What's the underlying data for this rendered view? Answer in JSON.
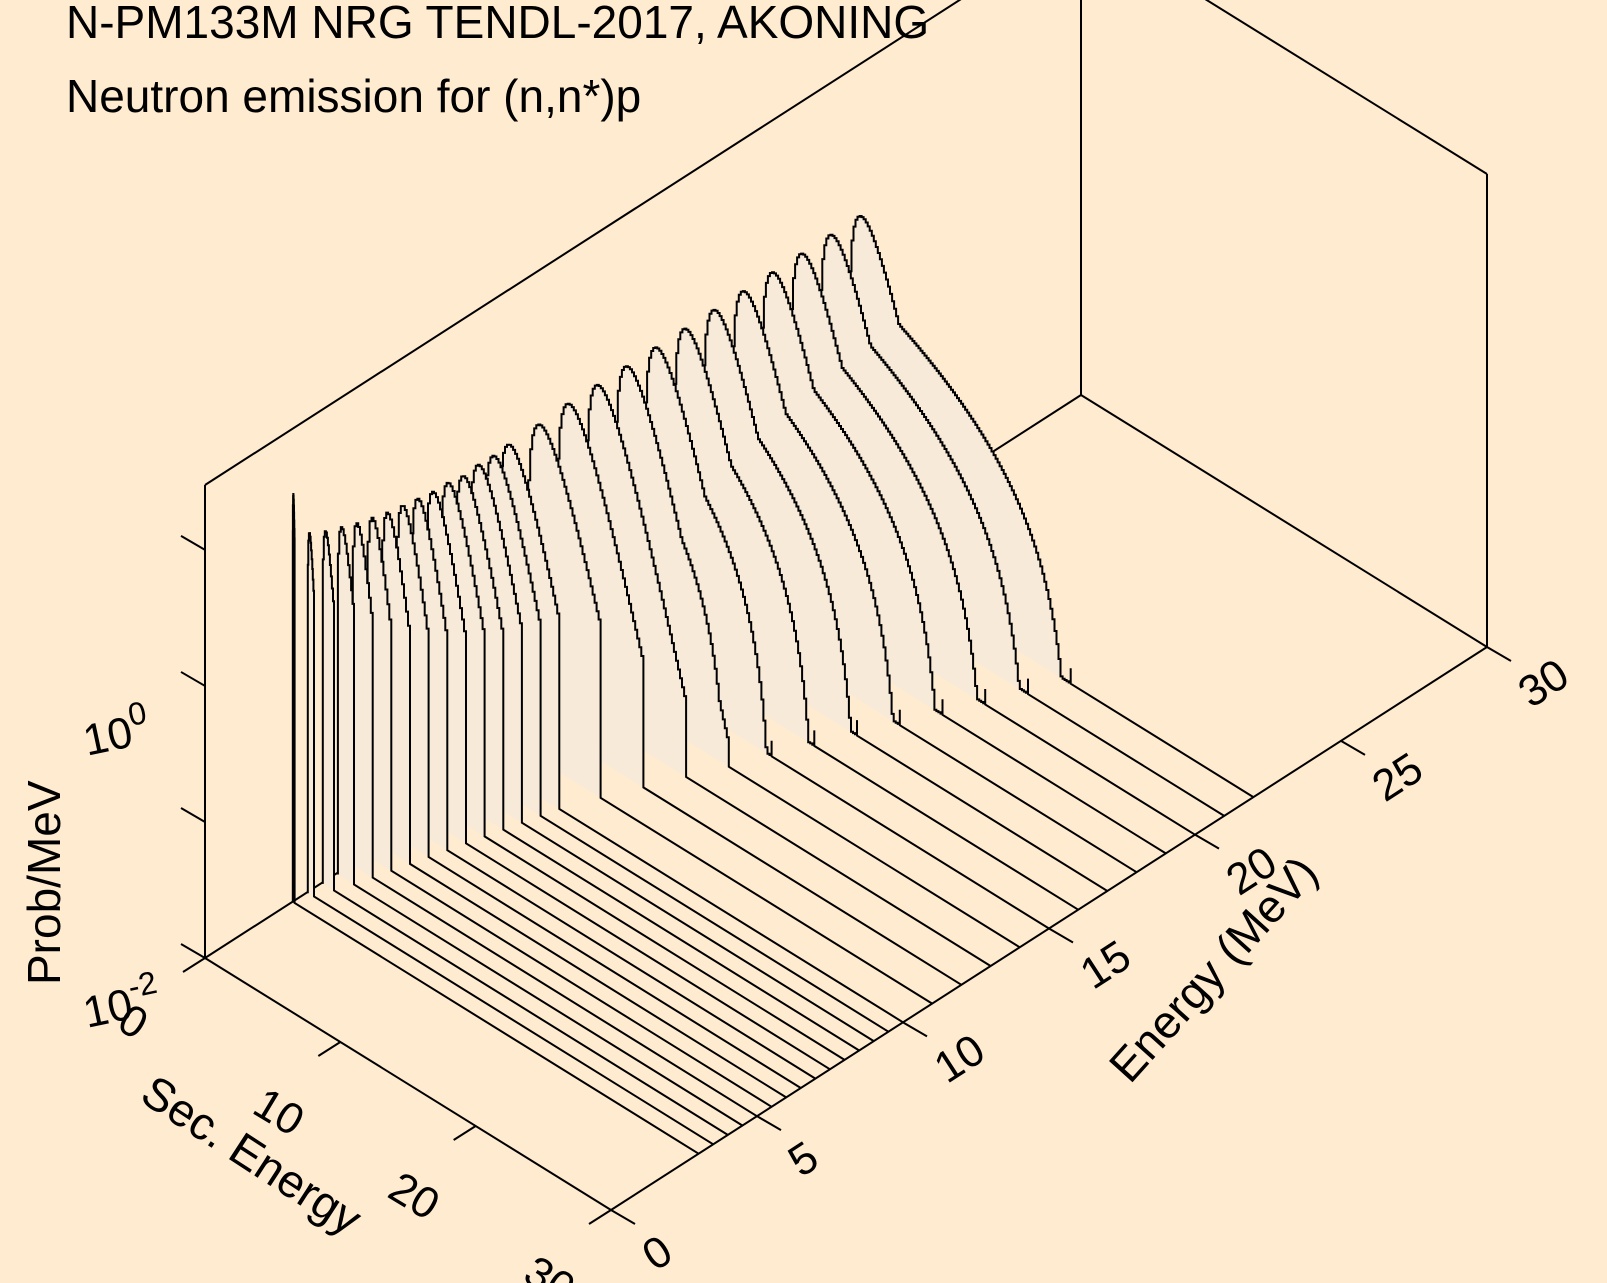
{
  "chart_data": {
    "type": "area",
    "title": "N-PM133M NRG TENDL-2017, AKONING",
    "subtitle": "Neutron emission for (n,n*)p",
    "xlabel": "Sec. Energy",
    "ylabel": "Energy (MeV)",
    "zlabel": "Prob/MeV",
    "xlim": [
      0,
      30
    ],
    "ylim": [
      0,
      30
    ],
    "zlim": [
      0.01,
      30
    ],
    "z_scale": "log",
    "x_ticks": [
      "0",
      "10",
      "20",
      "30"
    ],
    "y_ticks": [
      "0",
      "5",
      "10",
      "15",
      "20",
      "25",
      "30"
    ],
    "z_ticks": [
      {
        "base": "10",
        "exp": "-2"
      },
      {
        "base": "10",
        "exp": "0"
      }
    ],
    "series": [
      {
        "incident_energy": 3.0,
        "max_sec_energy": 0.15,
        "peak_energy": 0.05,
        "peak_value": 10.0
      },
      {
        "incident_energy": 3.5,
        "max_sec_energy": 0.5,
        "peak_energy": 0.15,
        "peak_value": 4.5
      },
      {
        "incident_energy": 4.0,
        "max_sec_energy": 0.9,
        "peak_energy": 0.25,
        "peak_value": 4.0
      },
      {
        "incident_energy": 4.5,
        "max_sec_energy": 1.3,
        "peak_energy": 0.35,
        "peak_value": 3.7
      },
      {
        "incident_energy": 5.0,
        "max_sec_energy": 1.6,
        "peak_energy": 0.4,
        "peak_value": 3.4
      },
      {
        "incident_energy": 5.5,
        "max_sec_energy": 1.9,
        "peak_energy": 0.45,
        "peak_value": 3.2
      },
      {
        "incident_energy": 6.0,
        "max_sec_energy": 2.2,
        "peak_energy": 0.5,
        "peak_value": 3.0
      },
      {
        "incident_energy": 6.5,
        "max_sec_energy": 2.5,
        "peak_energy": 0.55,
        "peak_value": 2.9
      },
      {
        "incident_energy": 7.0,
        "max_sec_energy": 2.8,
        "peak_energy": 0.6,
        "peak_value": 2.8
      },
      {
        "incident_energy": 7.5,
        "max_sec_energy": 3.1,
        "peak_energy": 0.65,
        "peak_value": 2.7
      },
      {
        "incident_energy": 8.0,
        "max_sec_energy": 3.4,
        "peak_energy": 0.7,
        "peak_value": 2.7
      },
      {
        "incident_energy": 8.5,
        "max_sec_energy": 3.7,
        "peak_energy": 0.75,
        "peak_value": 2.6
      },
      {
        "incident_energy": 9.0,
        "max_sec_energy": 4.0,
        "peak_energy": 0.8,
        "peak_value": 2.7
      },
      {
        "incident_energy": 9.5,
        "max_sec_energy": 4.3,
        "peak_energy": 0.85,
        "peak_value": 2.7
      },
      {
        "incident_energy": 10.0,
        "max_sec_energy": 4.6,
        "peak_energy": 0.9,
        "peak_value": 2.8
      },
      {
        "incident_energy": 11.0,
        "max_sec_energy": 5.5,
        "peak_energy": 1.0,
        "peak_value": 2.9
      },
      {
        "incident_energy": 12.0,
        "max_sec_energy": 6.5,
        "peak_energy": 1.0,
        "peak_value": 3.0
      },
      {
        "incident_energy": 13.0,
        "max_sec_energy": 7.5,
        "peak_energy": 1.0,
        "peak_value": 3.0
      },
      {
        "incident_energy": 14.0,
        "max_sec_energy": 8.5,
        "peak_energy": 1.0,
        "peak_value": 3.0
      },
      {
        "incident_energy": 15.0,
        "max_sec_energy": 9.5,
        "peak_energy": 1.0,
        "peak_value": 3.0
      },
      {
        "incident_energy": 16.0,
        "max_sec_energy": 10.5,
        "peak_energy": 1.0,
        "peak_value": 3.0
      },
      {
        "incident_energy": 17.0,
        "max_sec_energy": 11.5,
        "peak_energy": 1.0,
        "peak_value": 3.0
      },
      {
        "incident_energy": 18.0,
        "max_sec_energy": 12.5,
        "peak_energy": 1.0,
        "peak_value": 3.0
      },
      {
        "incident_energy": 19.0,
        "max_sec_energy": 13.5,
        "peak_energy": 1.0,
        "peak_value": 3.0
      },
      {
        "incident_energy": 20.0,
        "max_sec_energy": 14.5,
        "peak_energy": 1.0,
        "peak_value": 3.0
      },
      {
        "incident_energy": 21.0,
        "max_sec_energy": 15.5,
        "peak_energy": 1.0,
        "peak_value": 3.0
      },
      {
        "incident_energy": 22.0,
        "max_sec_energy": 16.5,
        "peak_energy": 1.0,
        "peak_value": 3.0
      }
    ]
  },
  "colors": {
    "background": "#feebd0",
    "fill": "#f8ead9",
    "line": "#000000"
  }
}
